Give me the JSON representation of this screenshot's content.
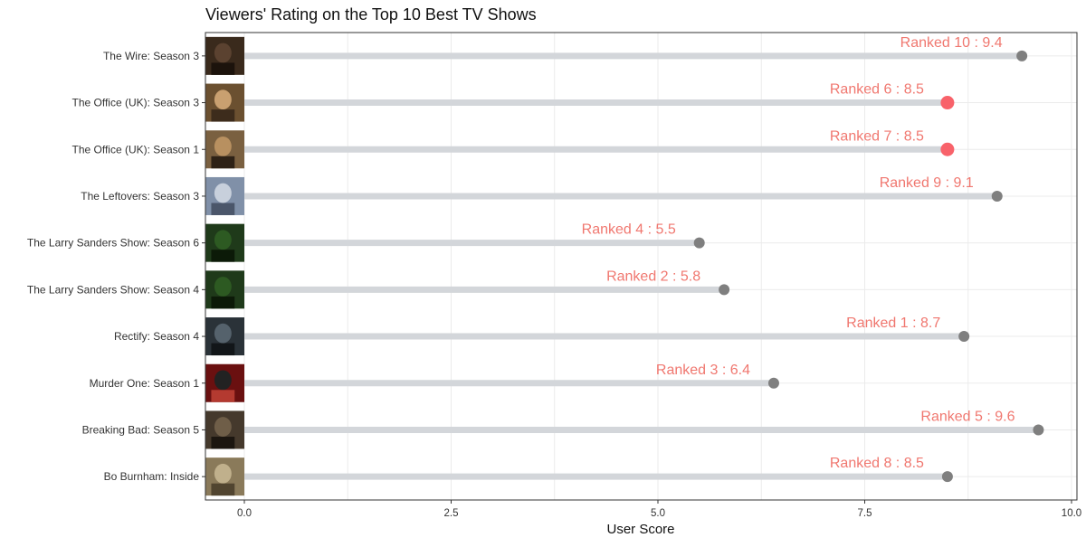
{
  "chart_data": {
    "type": "lollipop",
    "title": "Viewers' Rating on the Top 10 Best TV Shows",
    "xlabel": "User Score",
    "ylabel": "",
    "xlim": [
      0,
      10
    ],
    "x_ticks": [
      "0.0",
      "2.5",
      "5.0",
      "7.5",
      "10.0"
    ],
    "x_tick_values": [
      0,
      2.5,
      5,
      7.5,
      10
    ],
    "grid": true,
    "label_separator": " :  ",
    "rows": [
      {
        "category": "The Wire: Season 3",
        "value": 9.4,
        "rank": "Ranked 10",
        "highlight": false
      },
      {
        "category": "The Office (UK): Season 3",
        "value": 8.5,
        "rank": "Ranked 6",
        "highlight": true
      },
      {
        "category": "The Office (UK): Season 1",
        "value": 8.5,
        "rank": "Ranked 7",
        "highlight": true
      },
      {
        "category": "The Leftovers: Season 3",
        "value": 9.1,
        "rank": "Ranked 9",
        "highlight": false
      },
      {
        "category": "The Larry Sanders Show: Season 6",
        "value": 5.5,
        "rank": "Ranked 4",
        "highlight": false
      },
      {
        "category": "The Larry Sanders Show: Season 4",
        "value": 5.8,
        "rank": "Ranked 2",
        "highlight": false
      },
      {
        "category": "Rectify: Season 4",
        "value": 8.7,
        "rank": "Ranked 1",
        "highlight": false
      },
      {
        "category": "Murder One: Season 1",
        "value": 6.4,
        "rank": "Ranked 3",
        "highlight": false
      },
      {
        "category": "Breaking Bad: Season 5",
        "value": 9.6,
        "rank": "Ranked 5",
        "highlight": false
      },
      {
        "category": "Bo Burnham: Inside",
        "value": 8.5,
        "rank": "Ranked 8",
        "highlight": false
      }
    ],
    "colors": {
      "stem": "#d3d6da",
      "point": "#7f7f7f",
      "highlight_point": "#f8626a",
      "label": "#f0776f",
      "grid": "#ebebeb",
      "panel_border": "#333333"
    }
  }
}
